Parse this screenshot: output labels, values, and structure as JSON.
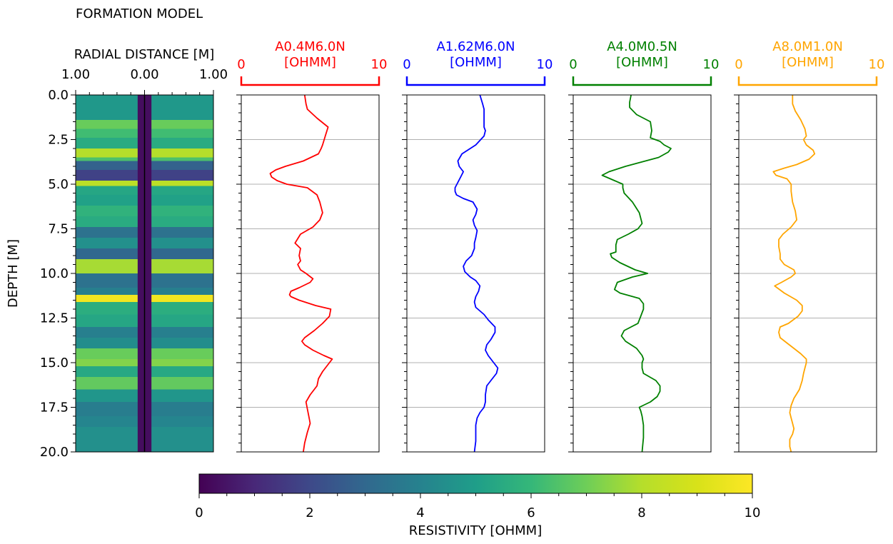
{
  "figure": {
    "title": "FORMATION MODEL",
    "depth_label": "DEPTH [M]",
    "depth_ticks": [
      "0.0",
      "2.5",
      "5.0",
      "7.5",
      "10.0",
      "12.5",
      "15.0",
      "17.5",
      "20.0"
    ]
  },
  "chart_data": [
    {
      "type": "heatmap",
      "title": "RADIAL DISTANCE [M]",
      "xlabel": "RADIAL DISTANCE [M]",
      "ylabel": "DEPTH [M]",
      "xlim": [
        -1.0,
        1.0
      ],
      "ylim": [
        20.0,
        0.0
      ],
      "x_ticks": [
        "1.00",
        "0.00",
        "1.00"
      ],
      "borehole": {
        "radius": 0.1,
        "resistivity": 0.3
      },
      "layers": [
        {
          "top": 0.0,
          "bottom": 1.4,
          "resistivity": 4.8
        },
        {
          "top": 1.4,
          "bottom": 1.9,
          "resistivity": 6.9
        },
        {
          "top": 1.9,
          "bottom": 2.4,
          "resistivity": 6.2
        },
        {
          "top": 2.4,
          "bottom": 3.0,
          "resistivity": 5.5
        },
        {
          "top": 3.0,
          "bottom": 3.5,
          "resistivity": 8.0
        },
        {
          "top": 3.5,
          "bottom": 3.7,
          "resistivity": 6.4
        },
        {
          "top": 3.7,
          "bottom": 4.2,
          "resistivity": 2.8
        },
        {
          "top": 4.2,
          "bottom": 4.8,
          "resistivity": 1.8
        },
        {
          "top": 4.8,
          "bottom": 5.1,
          "resistivity": 8.2
        },
        {
          "top": 5.1,
          "bottom": 5.6,
          "resistivity": 5.3
        },
        {
          "top": 5.6,
          "bottom": 6.2,
          "resistivity": 5.1
        },
        {
          "top": 6.2,
          "bottom": 6.8,
          "resistivity": 5.8
        },
        {
          "top": 6.8,
          "bottom": 7.4,
          "resistivity": 5.5
        },
        {
          "top": 7.4,
          "bottom": 8.0,
          "resistivity": 3.4
        },
        {
          "top": 8.0,
          "bottom": 8.6,
          "resistivity": 4.5
        },
        {
          "top": 8.6,
          "bottom": 9.2,
          "resistivity": 3.0
        },
        {
          "top": 9.2,
          "bottom": 10.0,
          "resistivity": 7.8
        },
        {
          "top": 10.0,
          "bottom": 10.8,
          "resistivity": 3.4
        },
        {
          "top": 10.8,
          "bottom": 11.2,
          "resistivity": 3.9
        },
        {
          "top": 11.2,
          "bottom": 11.6,
          "resistivity": 9.7
        },
        {
          "top": 11.6,
          "bottom": 12.3,
          "resistivity": 5.6
        },
        {
          "top": 12.3,
          "bottom": 13.0,
          "resistivity": 5.3
        },
        {
          "top": 13.0,
          "bottom": 13.6,
          "resistivity": 3.9
        },
        {
          "top": 13.6,
          "bottom": 14.2,
          "resistivity": 4.4
        },
        {
          "top": 14.2,
          "bottom": 14.8,
          "resistivity": 6.9
        },
        {
          "top": 14.8,
          "bottom": 15.2,
          "resistivity": 7.3
        },
        {
          "top": 15.2,
          "bottom": 15.8,
          "resistivity": 5.4
        },
        {
          "top": 15.8,
          "bottom": 16.5,
          "resistivity": 6.8
        },
        {
          "top": 16.5,
          "bottom": 17.2,
          "resistivity": 4.7
        },
        {
          "top": 17.2,
          "bottom": 18.0,
          "resistivity": 3.8
        },
        {
          "top": 18.0,
          "bottom": 18.6,
          "resistivity": 4.1
        },
        {
          "top": 18.6,
          "bottom": 20.0,
          "resistivity": 4.5
        }
      ]
    },
    {
      "type": "line",
      "title": "A0.4M6.0N\n[OHMM]",
      "color": "#ff0000",
      "xlim": [
        0,
        10
      ],
      "ylim": [
        20.0,
        0.0
      ],
      "x_ticks": [
        "0",
        "10"
      ],
      "grid": true,
      "series": [
        {
          "x": [
            4.6,
            4.7,
            4.8,
            5.5,
            6.3,
            6.1,
            5.9,
            5.8,
            5.6,
            4.5,
            3.2,
            2.5,
            2.1,
            2.2,
            2.6,
            3.3,
            4.8,
            5.5,
            5.7,
            5.9,
            5.7,
            5.2,
            4.3,
            3.9,
            4.3,
            4.2,
            4.3,
            4.1,
            4.3,
            4.5,
            4.7,
            5.2,
            5.0,
            4.2,
            3.6,
            3.5,
            3.6,
            4.2,
            5.4,
            6.5,
            6.4,
            5.9,
            5.3,
            4.6,
            4.4,
            4.6,
            5.2,
            6.0,
            6.6,
            6.3,
            5.9,
            5.6,
            5.5,
            5.0,
            4.7,
            4.8,
            4.9,
            5.0,
            4.8,
            4.6,
            4.5
          ],
          "y": [
            0.0,
            0.5,
            0.8,
            1.3,
            1.8,
            2.3,
            2.8,
            3.0,
            3.3,
            3.7,
            4.0,
            4.2,
            4.4,
            4.6,
            4.8,
            5.0,
            5.2,
            5.6,
            6.0,
            6.6,
            7.0,
            7.4,
            7.8,
            8.3,
            8.6,
            9.0,
            9.3,
            9.5,
            9.8,
            9.9,
            10.0,
            10.3,
            10.5,
            10.8,
            11.0,
            11.2,
            11.3,
            11.5,
            11.8,
            12.0,
            12.4,
            12.8,
            13.2,
            13.6,
            13.8,
            14.0,
            14.3,
            14.6,
            14.8,
            15.1,
            15.5,
            15.9,
            16.3,
            16.8,
            17.2,
            17.6,
            18.0,
            18.4,
            18.9,
            19.5,
            20.0
          ]
        }
      ]
    },
    {
      "type": "line",
      "title": "A1.62M6.0N\n[OHMM]",
      "color": "#0000ff",
      "xlim": [
        0,
        10
      ],
      "ylim": [
        20.0,
        0.0
      ],
      "x_ticks": [
        "0",
        "10"
      ],
      "grid": true,
      "series": [
        {
          "x": [
            5.3,
            5.5,
            5.6,
            5.6,
            5.6,
            5.7,
            5.6,
            5.0,
            4.0,
            3.7,
            3.8,
            4.1,
            3.9,
            3.7,
            3.5,
            3.5,
            3.6,
            4.1,
            4.8,
            5.1,
            5.0,
            4.8,
            4.9,
            5.1,
            5.0,
            4.9,
            4.9,
            4.7,
            4.3,
            4.1,
            4.2,
            4.6,
            5.0,
            5.3,
            5.2,
            5.0,
            4.9,
            5.0,
            5.3,
            5.6,
            5.9,
            6.4,
            6.4,
            6.1,
            5.8,
            5.7,
            5.9,
            6.3,
            6.6,
            6.5,
            6.1,
            5.8,
            5.7,
            5.7,
            5.6,
            5.3,
            5.1,
            5.0,
            5.0,
            5.0,
            4.9
          ],
          "y": [
            0.0,
            0.5,
            0.8,
            1.3,
            1.8,
            2.0,
            2.3,
            2.8,
            3.3,
            3.7,
            4.0,
            4.3,
            4.6,
            4.9,
            5.2,
            5.4,
            5.6,
            5.8,
            6.0,
            6.4,
            6.7,
            7.0,
            7.3,
            7.6,
            8.0,
            8.3,
            8.6,
            9.0,
            9.3,
            9.6,
            9.9,
            10.2,
            10.4,
            10.7,
            11.0,
            11.3,
            11.6,
            11.9,
            12.1,
            12.3,
            12.6,
            13.0,
            13.3,
            13.7,
            14.0,
            14.3,
            14.6,
            15.0,
            15.3,
            15.6,
            16.0,
            16.3,
            16.8,
            17.2,
            17.5,
            17.8,
            18.1,
            18.5,
            18.9,
            19.4,
            20.0
          ]
        }
      ]
    },
    {
      "type": "line",
      "title": "A4.0M0.5N\n[OHMM]",
      "color": "#008000",
      "xlim": [
        0,
        10
      ],
      "ylim": [
        20.0,
        0.0
      ],
      "x_ticks": [
        "0",
        "10"
      ],
      "grid": true,
      "series": [
        {
          "x": [
            4.2,
            4.1,
            4.1,
            4.6,
            5.6,
            5.7,
            5.6,
            6.3,
            6.6,
            7.1,
            6.9,
            6.2,
            3.8,
            2.6,
            2.1,
            3.0,
            3.6,
            3.6,
            3.7,
            4.3,
            4.8,
            5.0,
            4.7,
            4.0,
            3.2,
            3.1,
            3.1,
            2.7,
            2.8,
            3.4,
            4.5,
            5.4,
            4.3,
            3.2,
            3.0,
            3.4,
            4.8,
            5.1,
            5.1,
            4.9,
            4.7,
            3.7,
            3.5,
            3.8,
            4.6,
            5.0,
            5.1,
            5.0,
            5.0,
            5.1,
            6.0,
            6.3,
            6.3,
            6.1,
            5.6,
            4.8,
            4.9,
            5.0,
            5.1,
            5.1,
            5.0
          ],
          "y": [
            0.0,
            0.4,
            0.7,
            1.1,
            1.5,
            2.0,
            2.4,
            2.6,
            2.8,
            3.0,
            3.2,
            3.5,
            4.0,
            4.3,
            4.5,
            4.8,
            5.0,
            5.2,
            5.5,
            6.0,
            6.6,
            7.2,
            7.5,
            7.8,
            8.1,
            8.4,
            8.8,
            8.9,
            9.1,
            9.4,
            9.8,
            10.0,
            10.2,
            10.5,
            10.9,
            11.1,
            11.4,
            11.7,
            12.0,
            12.4,
            12.8,
            13.2,
            13.5,
            13.8,
            14.2,
            14.6,
            14.8,
            15.0,
            15.3,
            15.6,
            16.0,
            16.3,
            16.6,
            16.9,
            17.2,
            17.5,
            17.7,
            18.0,
            18.5,
            19.2,
            20.0
          ]
        }
      ]
    },
    {
      "type": "line",
      "title": "A8.0M1.0N\n[OHMM]",
      "color": "#ffa500",
      "xlim": [
        0,
        10
      ],
      "ylim": [
        20.0,
        0.0
      ],
      "x_ticks": [
        "0",
        "10"
      ],
      "grid": true,
      "series": [
        {
          "x": [
            3.9,
            3.9,
            4.1,
            4.5,
            4.8,
            4.9,
            4.7,
            4.9,
            5.4,
            5.5,
            5.1,
            4.2,
            3.3,
            2.5,
            2.7,
            3.5,
            3.8,
            3.8,
            3.9,
            4.1,
            4.2,
            3.8,
            3.2,
            2.9,
            2.9,
            3.0,
            3.0,
            3.3,
            4.0,
            4.1,
            3.8,
            3.1,
            2.6,
            3.3,
            4.2,
            4.6,
            4.6,
            4.3,
            3.6,
            3.0,
            2.9,
            3.0,
            3.5,
            4.0,
            4.5,
            4.9,
            4.9,
            4.8,
            4.7,
            4.6,
            4.4,
            4.0,
            3.8,
            3.7,
            3.8,
            3.9,
            4.0,
            3.9,
            3.7,
            3.7,
            3.8
          ],
          "y": [
            0.0,
            0.5,
            0.9,
            1.4,
            1.9,
            2.3,
            2.5,
            2.8,
            3.1,
            3.3,
            3.6,
            3.9,
            4.1,
            4.3,
            4.5,
            4.7,
            5.0,
            5.4,
            6.0,
            6.5,
            7.0,
            7.4,
            7.8,
            8.1,
            8.5,
            8.9,
            9.2,
            9.5,
            9.8,
            10.0,
            10.2,
            10.5,
            10.7,
            11.1,
            11.5,
            11.8,
            12.1,
            12.4,
            12.8,
            13.0,
            13.3,
            13.6,
            13.9,
            14.2,
            14.5,
            14.8,
            15.0,
            15.3,
            15.6,
            16.0,
            16.5,
            17.0,
            17.4,
            17.8,
            18.1,
            18.4,
            18.7,
            19.0,
            19.3,
            19.7,
            20.0
          ]
        }
      ]
    }
  ],
  "colorbar": {
    "label": "RESISTIVITY [OHMM]",
    "range": [
      0,
      10
    ],
    "ticks": [
      "0",
      "2",
      "4",
      "6",
      "8",
      "10"
    ],
    "colormap": "viridis"
  }
}
